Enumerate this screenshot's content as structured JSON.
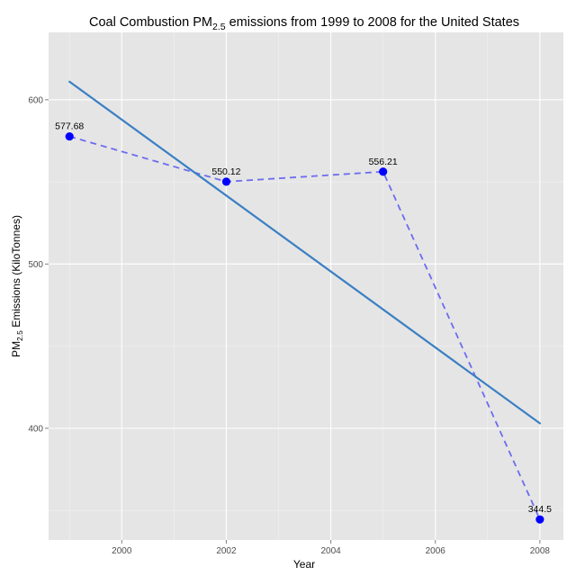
{
  "chart_data": {
    "type": "line",
    "title": "Coal Combustion PM2.5 emissions from 1999 to 2008 for the United States",
    "title_parts": {
      "prefix": "Coal Combustion PM",
      "subscript": "2.5",
      "suffix": " emissions from 1999 to 2008 for the United States"
    },
    "xlabel": "Year",
    "ylabel": "PM2.5 Emissions (KiloTonnes)",
    "ylabel_parts": {
      "prefix": "PM",
      "subscript": "2.5",
      "suffix": " Emissions (KiloTonnes)"
    },
    "x_ticks": [
      2000,
      2002,
      2004,
      2006,
      2008
    ],
    "x_tick_labels": [
      "2000",
      "2002",
      "2004",
      "2006",
      "2008"
    ],
    "y_ticks": [
      400,
      500,
      600
    ],
    "y_tick_labels": [
      "400",
      "500",
      "600"
    ],
    "xlim": [
      1998.6,
      2008.45
    ],
    "ylim": [
      332,
      641
    ],
    "grid": true,
    "legend": "none",
    "series": [
      {
        "style": "points-dashed",
        "color": "#0000ff",
        "line_color": "#6c6cf0",
        "x": [
          1999,
          2002,
          2005,
          2008
        ],
        "values": [
          577.68,
          550.12,
          556.21,
          344.5
        ],
        "labels": [
          "577.68",
          "550.12",
          "556.21",
          "344.5"
        ]
      },
      {
        "style": "regression-line",
        "color": "#3a7fc4",
        "x": [
          1999,
          2008
        ],
        "values": [
          611.0,
          403.0
        ]
      }
    ]
  }
}
